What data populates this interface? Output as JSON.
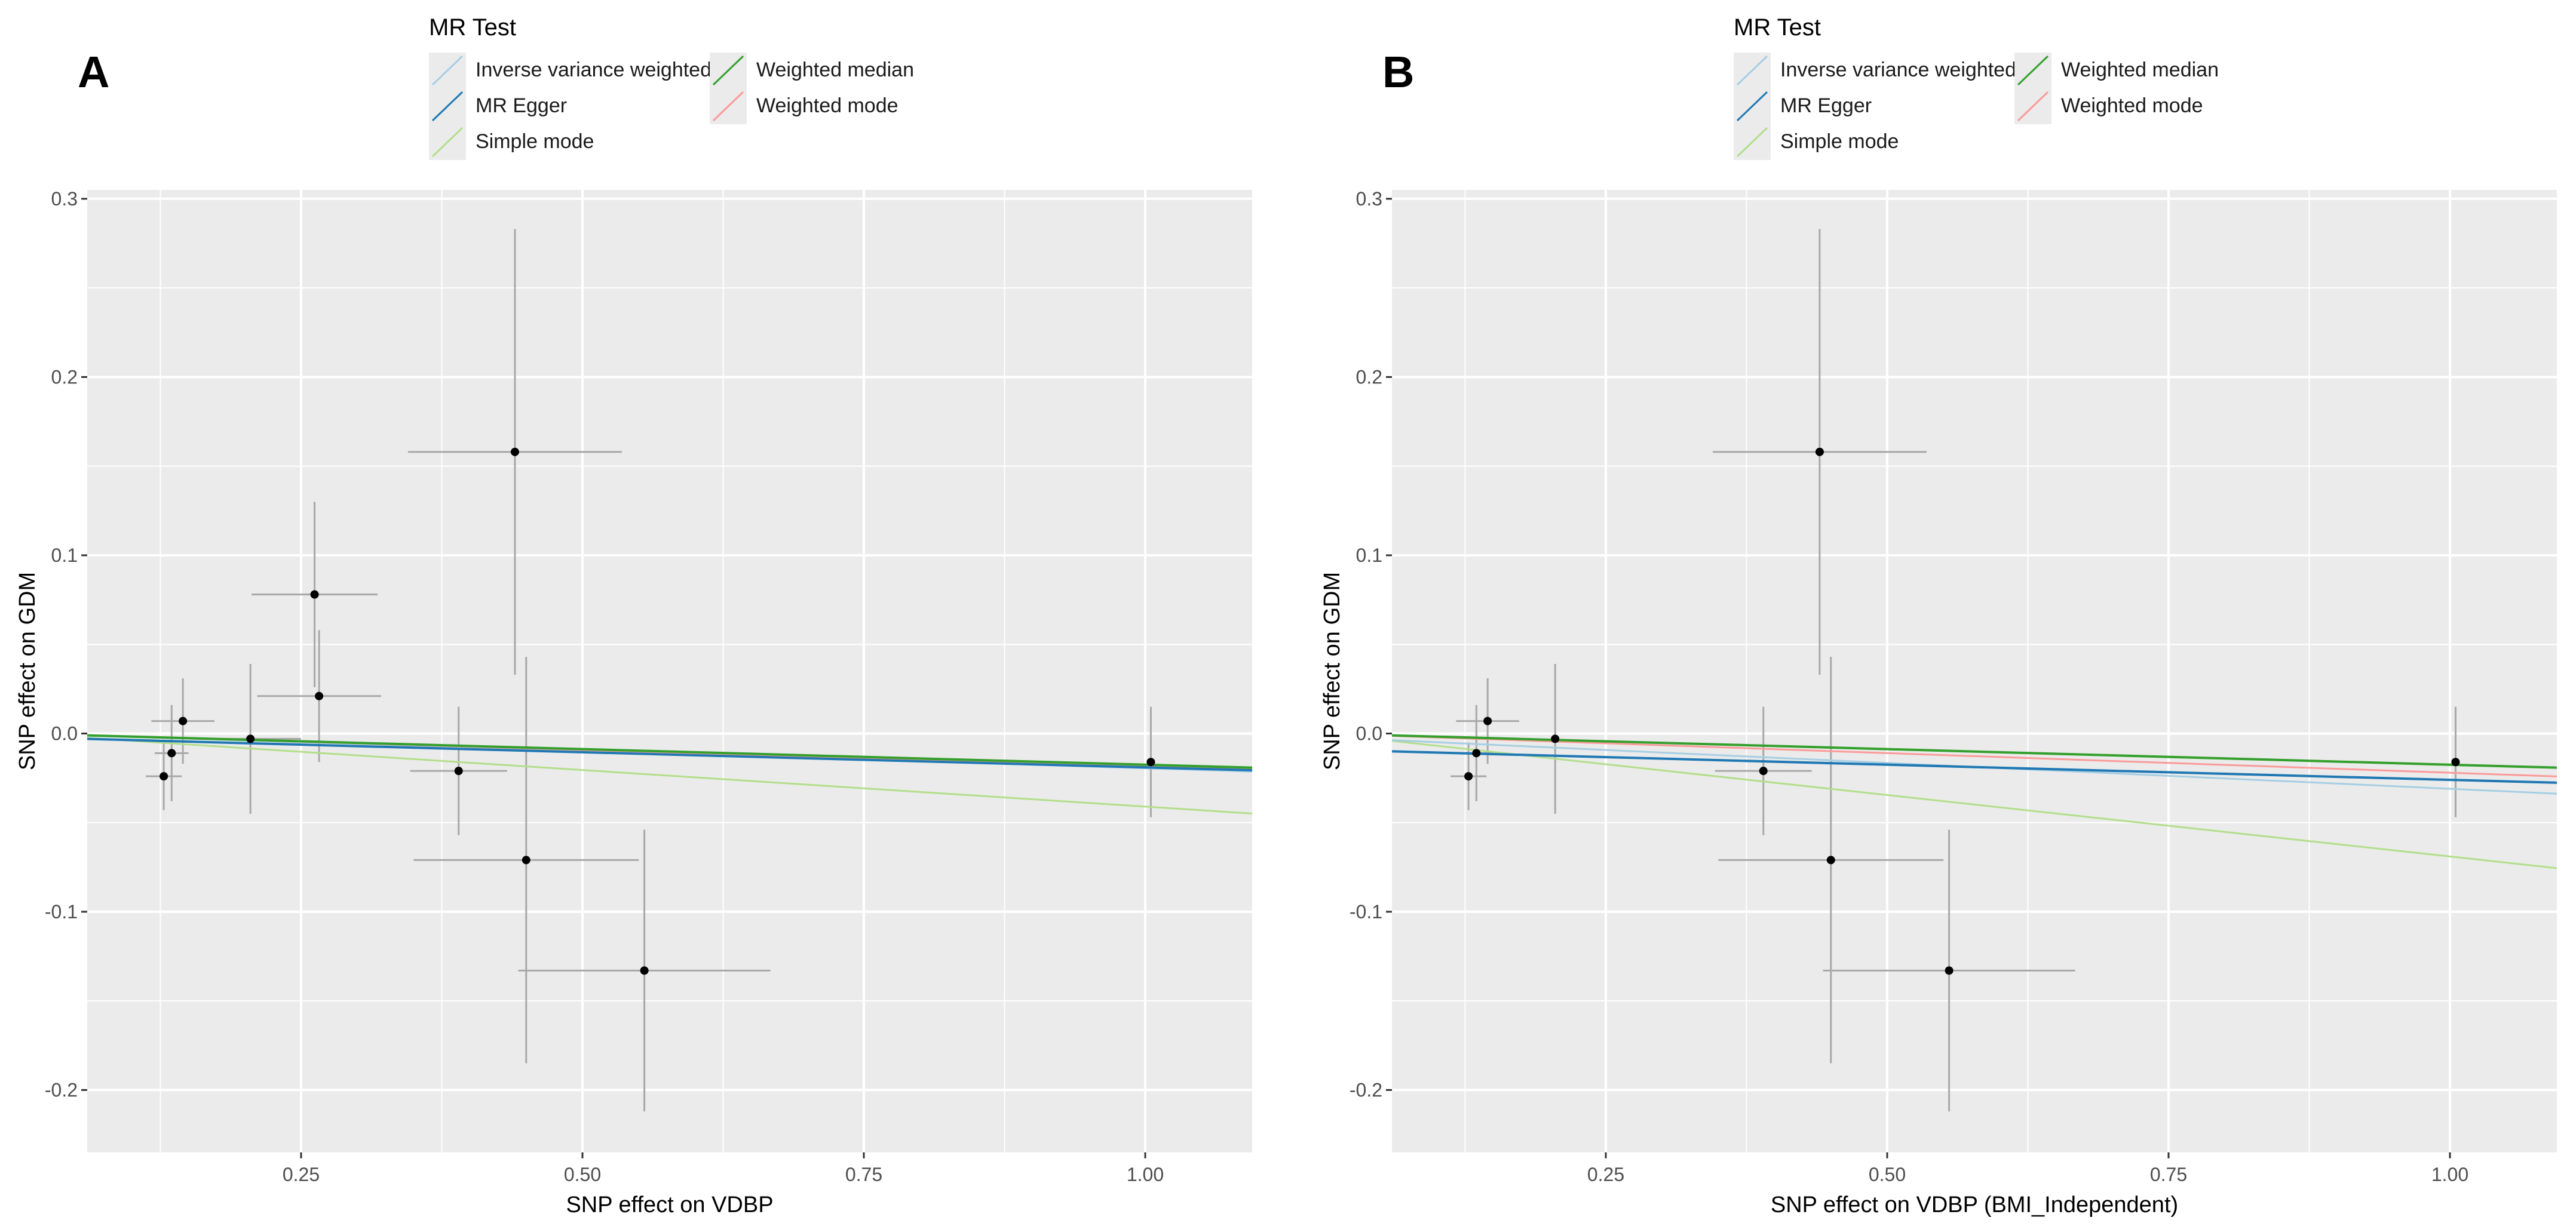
{
  "legend": {
    "title": "MR Test",
    "items": [
      {
        "label": "Inverse variance weighted",
        "color": "#a6cee3"
      },
      {
        "label": "Weighted median",
        "color": "#33a02c"
      },
      {
        "label": "MR Egger",
        "color": "#1f78b4"
      },
      {
        "label": "Weighted mode",
        "color": "#fb9a99"
      },
      {
        "label": "Simple mode",
        "color": "#b2df8a"
      }
    ]
  },
  "chart_data": [
    {
      "type": "scatter",
      "panel_label": "A",
      "xlabel": "SNP effect on VDBP",
      "ylabel": "SNP effect on GDM",
      "xlim": [
        0.06,
        1.095
      ],
      "ylim": [
        -0.235,
        0.305
      ],
      "xticks": [
        0.25,
        0.5,
        0.75,
        1.0
      ],
      "xtick_labels": [
        "0.25",
        "0.50",
        "0.75",
        "1.00"
      ],
      "yticks": [
        -0.2,
        -0.1,
        0.0,
        0.1,
        0.2,
        0.3
      ],
      "ytick_labels": [
        "-0.2",
        "-0.1",
        "0.0",
        "0.1",
        "0.2",
        "0.3"
      ],
      "grid": true,
      "points": [
        {
          "x": 0.128,
          "y": -0.024,
          "xse": 0.016,
          "yse": 0.019
        },
        {
          "x": 0.135,
          "y": -0.011,
          "xse": 0.015,
          "yse": 0.027
        },
        {
          "x": 0.145,
          "y": 0.007,
          "xse": 0.028,
          "yse": 0.024
        },
        {
          "x": 0.205,
          "y": -0.003,
          "xse": 0.045,
          "yse": 0.042
        },
        {
          "x": 0.262,
          "y": 0.078,
          "xse": 0.056,
          "yse": 0.052
        },
        {
          "x": 0.266,
          "y": 0.021,
          "xse": 0.055,
          "yse": 0.037
        },
        {
          "x": 0.39,
          "y": -0.021,
          "xse": 0.043,
          "yse": 0.036
        },
        {
          "x": 0.44,
          "y": 0.158,
          "xse": 0.095,
          "yse": 0.125
        },
        {
          "x": 0.45,
          "y": -0.071,
          "xse": 0.1,
          "yse": 0.114
        },
        {
          "x": 0.555,
          "y": -0.133,
          "xse": 0.112,
          "yse": 0.079
        },
        {
          "x": 1.005,
          "y": -0.016,
          "xse": 0.0,
          "yse": 0.031
        }
      ],
      "lines": [
        {
          "name": "Inverse variance weighted",
          "intercept": 0.0,
          "slope": -0.0195
        },
        {
          "name": "MR Egger",
          "intercept": -0.002,
          "slope": -0.017
        },
        {
          "name": "Simple mode",
          "intercept": 0.0,
          "slope": -0.041
        },
        {
          "name": "Weighted median",
          "intercept": 0.0,
          "slope": -0.0175
        },
        {
          "name": "Weighted mode",
          "intercept": 0.0,
          "slope": -0.0185
        }
      ]
    },
    {
      "type": "scatter",
      "panel_label": "B",
      "xlabel": "SNP effect on VDBP (BMI_Independent)",
      "ylabel": "SNP effect on GDM",
      "xlim": [
        0.06,
        1.095
      ],
      "ylim": [
        -0.235,
        0.305
      ],
      "xticks": [
        0.25,
        0.5,
        0.75,
        1.0
      ],
      "xtick_labels": [
        "0.25",
        "0.50",
        "0.75",
        "1.00"
      ],
      "yticks": [
        -0.2,
        -0.1,
        0.0,
        0.1,
        0.2,
        0.3
      ],
      "ytick_labels": [
        "-0.2",
        "-0.1",
        "0.0",
        "0.1",
        "0.2",
        "0.3"
      ],
      "grid": true,
      "points": [
        {
          "x": 0.128,
          "y": -0.024,
          "xse": 0.016,
          "yse": 0.019
        },
        {
          "x": 0.135,
          "y": -0.011,
          "xse": 0.015,
          "yse": 0.027
        },
        {
          "x": 0.145,
          "y": 0.007,
          "xse": 0.028,
          "yse": 0.024
        },
        {
          "x": 0.205,
          "y": -0.003,
          "xse": 0.0,
          "yse": 0.042
        },
        {
          "x": 0.39,
          "y": -0.021,
          "xse": 0.043,
          "yse": 0.036
        },
        {
          "x": 0.44,
          "y": 0.158,
          "xse": 0.095,
          "yse": 0.125
        },
        {
          "x": 0.45,
          "y": -0.071,
          "xse": 0.1,
          "yse": 0.114
        },
        {
          "x": 0.555,
          "y": -0.133,
          "xse": 0.112,
          "yse": 0.079
        },
        {
          "x": 1.005,
          "y": -0.016,
          "xse": 0.0,
          "yse": 0.031
        }
      ],
      "lines": [
        {
          "name": "Inverse variance weighted",
          "intercept": -0.002,
          "slope": -0.029
        },
        {
          "name": "MR Egger",
          "intercept": -0.009,
          "slope": -0.017
        },
        {
          "name": "Simple mode",
          "intercept": 0.0,
          "slope": -0.069
        },
        {
          "name": "Weighted median",
          "intercept": 0.0,
          "slope": -0.0175
        },
        {
          "name": "Weighted mode",
          "intercept": 0.0,
          "slope": -0.022
        }
      ]
    }
  ]
}
